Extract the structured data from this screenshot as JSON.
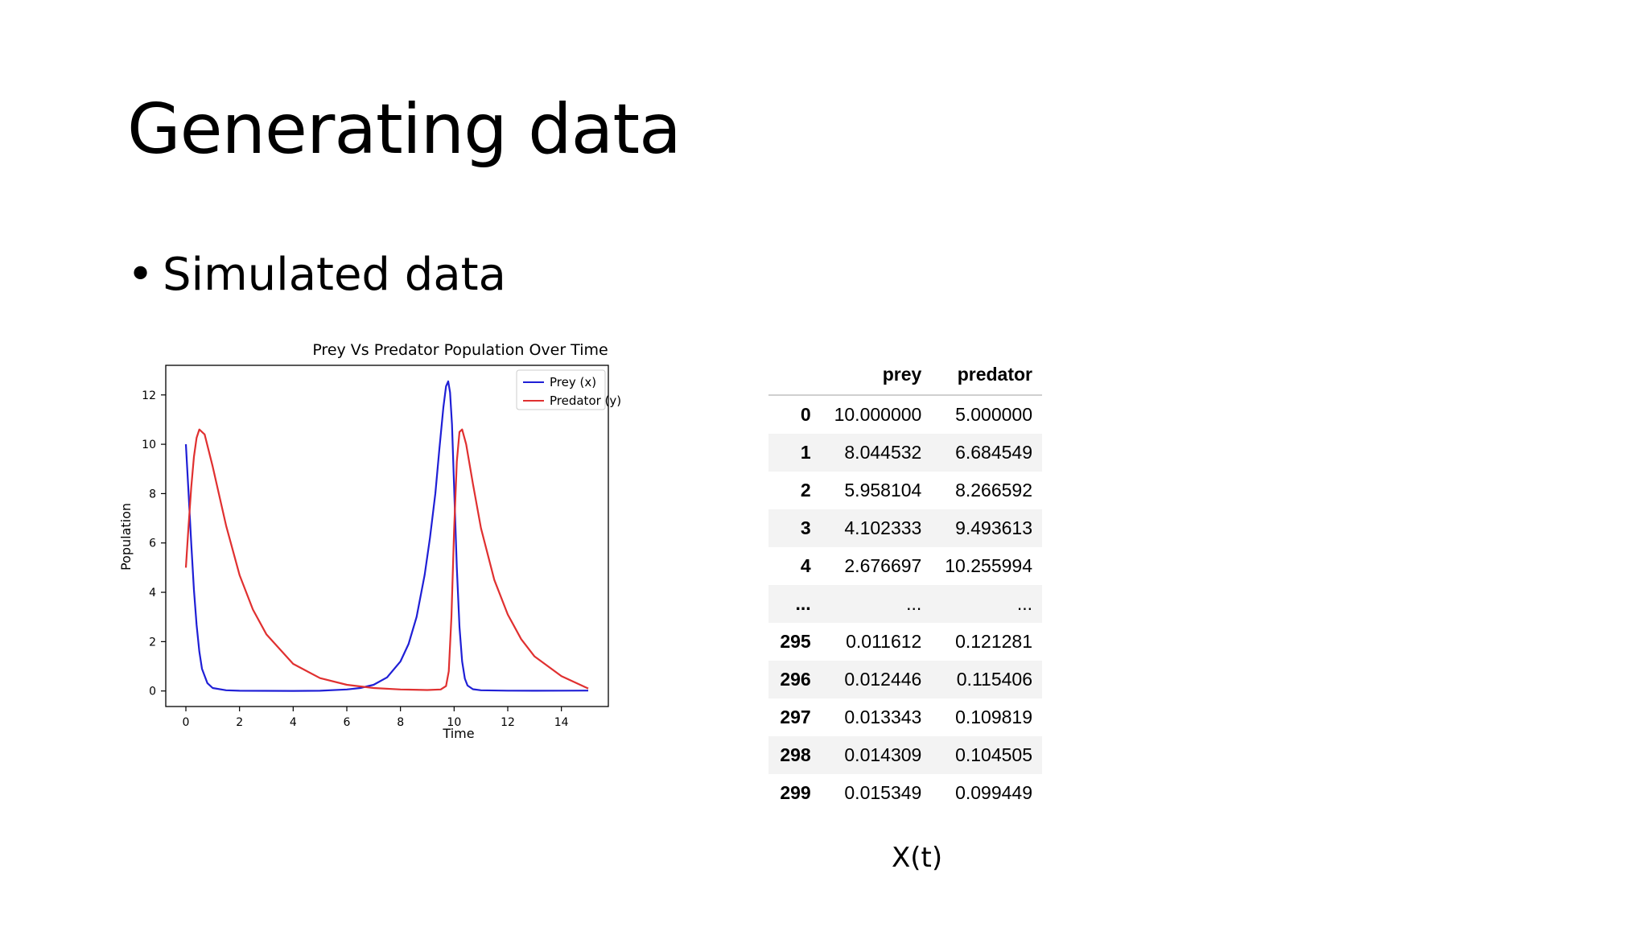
{
  "slide": {
    "title": "Generating data",
    "bullet": "Simulated data",
    "caption": "X(t)"
  },
  "table": {
    "columns": [
      "",
      "prey",
      "predator"
    ],
    "rows": [
      [
        "0",
        "10.000000",
        "5.000000"
      ],
      [
        "1",
        "8.044532",
        "6.684549"
      ],
      [
        "2",
        "5.958104",
        "8.266592"
      ],
      [
        "3",
        "4.102333",
        "9.493613"
      ],
      [
        "4",
        "2.676697",
        "10.255994"
      ],
      [
        "...",
        "...",
        "..."
      ],
      [
        "295",
        "0.011612",
        "0.121281"
      ],
      [
        "296",
        "0.012446",
        "0.115406"
      ],
      [
        "297",
        "0.013343",
        "0.109819"
      ],
      [
        "298",
        "0.014309",
        "0.104505"
      ],
      [
        "299",
        "0.015349",
        "0.099449"
      ]
    ]
  },
  "chart_data": {
    "type": "line",
    "title": "Prey Vs Predator Population Over Time",
    "xlabel": "Time",
    "ylabel": "Population",
    "xlim": [
      -0.75,
      15.75
    ],
    "ylim": [
      -0.63,
      13.2
    ],
    "xticks": [
      0,
      2,
      4,
      6,
      8,
      10,
      12,
      14
    ],
    "yticks": [
      0,
      2,
      4,
      6,
      8,
      10,
      12
    ],
    "grid": false,
    "legend_position": "top-right",
    "series": [
      {
        "name": "Prey (x)",
        "color": "#1f1fd6",
        "x": [
          0,
          0.1,
          0.2,
          0.3,
          0.4,
          0.5,
          0.6,
          0.8,
          1.0,
          1.5,
          2,
          3,
          4,
          5,
          6,
          6.5,
          7,
          7.5,
          8,
          8.3,
          8.6,
          8.9,
          9.1,
          9.3,
          9.45,
          9.6,
          9.7,
          9.78,
          9.85,
          9.92,
          10.0,
          10.1,
          10.2,
          10.3,
          10.4,
          10.5,
          10.7,
          11,
          12,
          13,
          14,
          15
        ],
        "y": [
          10.0,
          8.04,
          5.96,
          4.1,
          2.68,
          1.6,
          0.9,
          0.32,
          0.12,
          0.03,
          0.01,
          0.005,
          0.004,
          0.01,
          0.06,
          0.12,
          0.25,
          0.55,
          1.2,
          1.9,
          3.0,
          4.7,
          6.2,
          8.0,
          9.8,
          11.5,
          12.35,
          12.55,
          12.1,
          10.8,
          8.3,
          5.0,
          2.6,
          1.2,
          0.5,
          0.22,
          0.07,
          0.03,
          0.012,
          0.01,
          0.012,
          0.015
        ]
      },
      {
        "name": "Predator (y)",
        "color": "#e03030",
        "x": [
          0,
          0.1,
          0.2,
          0.3,
          0.4,
          0.5,
          0.7,
          1.0,
          1.5,
          2,
          2.5,
          3,
          4,
          5,
          6,
          7,
          8,
          9,
          9.5,
          9.7,
          9.8,
          9.9,
          10.0,
          10.1,
          10.2,
          10.3,
          10.45,
          10.7,
          11,
          11.5,
          12,
          12.5,
          13,
          14,
          15
        ],
        "y": [
          5.0,
          6.68,
          8.27,
          9.49,
          10.26,
          10.6,
          10.4,
          9.1,
          6.7,
          4.7,
          3.3,
          2.3,
          1.1,
          0.52,
          0.25,
          0.12,
          0.06,
          0.04,
          0.06,
          0.2,
          0.8,
          3.0,
          6.5,
          9.3,
          10.5,
          10.6,
          10.0,
          8.4,
          6.6,
          4.5,
          3.1,
          2.1,
          1.4,
          0.6,
          0.1
        ]
      }
    ]
  }
}
